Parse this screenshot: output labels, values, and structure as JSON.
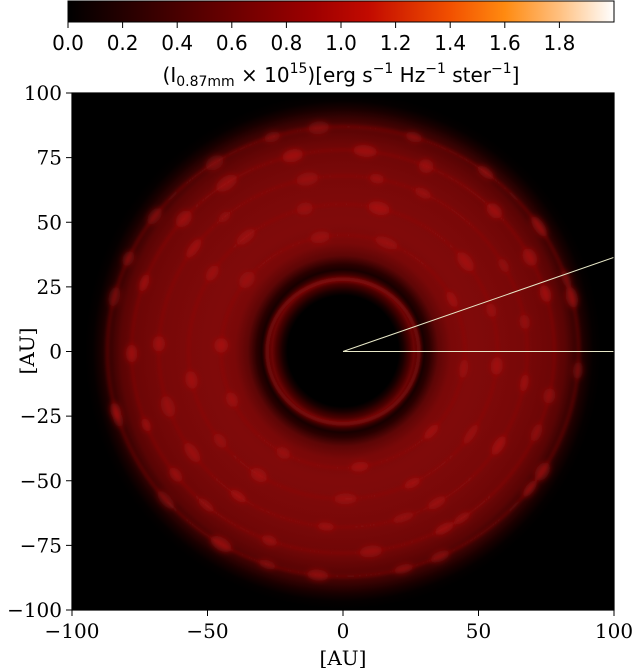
{
  "chart_data": {
    "type": "heatmap",
    "title": "",
    "xlabel": "[AU]",
    "ylabel": "[AU]",
    "xlim": [
      -100,
      100
    ],
    "ylim": [
      -100,
      100
    ],
    "x_ticks": [
      -100,
      -50,
      0,
      50,
      100
    ],
    "y_ticks": [
      100,
      75,
      50,
      25,
      0,
      -25,
      -50,
      -75,
      -100
    ],
    "x_tick_labels": [
      "−100",
      "−50",
      "0",
      "50",
      "100"
    ],
    "y_tick_labels": [
      "100",
      "75",
      "50",
      "25",
      "0",
      "−25",
      "−50",
      "−75",
      "−100"
    ],
    "colorbar": {
      "position": "top",
      "range": [
        0.0,
        2.0
      ],
      "ticks": [
        0.0,
        0.2,
        0.4,
        0.6,
        0.8,
        1.0,
        1.2,
        1.4,
        1.6,
        1.8
      ],
      "tick_labels": [
        "0.0",
        "0.2",
        "0.4",
        "0.6",
        "0.8",
        "1.0",
        "1.2",
        "1.4",
        "1.6",
        "1.8"
      ],
      "label_prefix": "(I",
      "label_sub": "0.87mm",
      "label_mid": " × 10",
      "label_sup1": "15",
      "label_mid2": ")[erg s",
      "label_sup2": "−1",
      "label_mid3": " Hz",
      "label_sup3": "−1",
      "label_mid4": " ster",
      "label_sup4": "−1",
      "label_end": "]",
      "colormap": "gist_heat"
    },
    "image_features": {
      "central_cavity_radius_au": 21,
      "inner_bright_ring_radius_au": 28,
      "inner_ring_intensity": 0.55,
      "outer_disk_inner_radius_au": 33,
      "outer_disk_outer_radius_au": 93,
      "outer_disk_intensity": 0.75,
      "ring_radii_au": [
        45,
        57,
        68,
        78,
        87
      ],
      "background_intensity": 0.0
    },
    "annotation_lines": [
      {
        "from": [
          0,
          0
        ],
        "to": [
          100,
          0
        ],
        "color": "#e8e8c8"
      },
      {
        "from": [
          0,
          0
        ],
        "to": [
          100,
          36.4
        ],
        "color": "#e8e8c8"
      }
    ]
  }
}
